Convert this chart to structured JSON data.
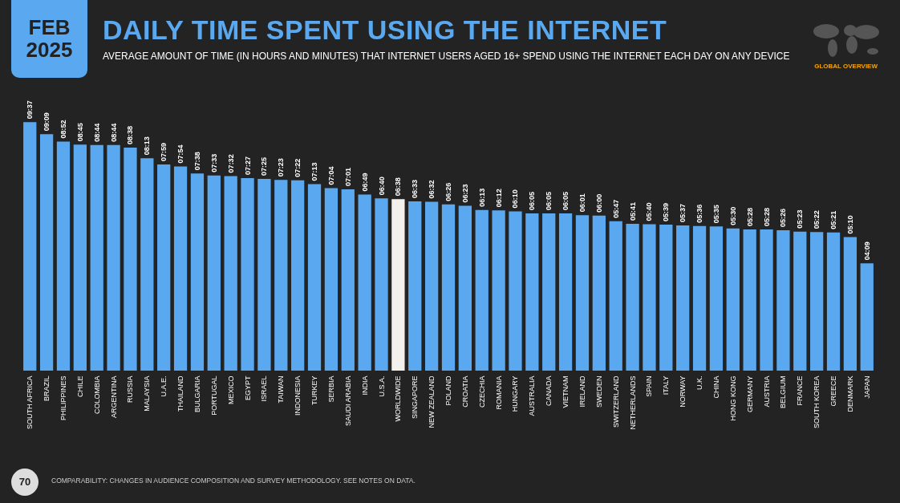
{
  "chart_data": {
    "type": "bar",
    "title": "DAILY TIME SPENT USING THE INTERNET",
    "subtitle": "AVERAGE AMOUNT OF TIME (IN HOURS AND MINUTES) THAT INTERNET USERS AGED 16+ SPEND USING THE INTERNET EACH DAY ON ANY DEVICE",
    "annotations": [
      "FEB 2025",
      "GLOBAL OVERVIEW",
      "70",
      "COMPARABILITY: CHANGES IN AUDIENCE COMPOSITION AND SURVEY METHODOLOGY. SEE NOTES ON DATA."
    ],
    "categories": [
      "SOUTH AFRICA",
      "BRAZIL",
      "PHILIPPINES",
      "CHILE",
      "COLOMBIA",
      "ARGENTINA",
      "RUSSIA",
      "MALAYSIA",
      "U.A.E.",
      "THAILAND",
      "BULGARIA",
      "PORTUGAL",
      "MEXICO",
      "EGYPT",
      "ISRAEL",
      "TAIWAN",
      "INDONESIA",
      "TURKEY",
      "SERBIA",
      "SAUDI ARABIA",
      "INDIA",
      "U.S.A.",
      "WORLDWIDE",
      "SINGAPORE",
      "NEW ZEALAND",
      "POLAND",
      "CROATIA",
      "CZECHIA",
      "ROMANIA",
      "HUNGARY",
      "AUSTRALIA",
      "CANADA",
      "VIETNAM",
      "IRELAND",
      "SWEDEN",
      "SWITZERLAND",
      "NETHERLANDS",
      "SPAIN",
      "ITALY",
      "NORWAY",
      "U.K.",
      "CHINA",
      "HONG KONG",
      "GERMANY",
      "AUSTRIA",
      "BELGIUM",
      "FRANCE",
      "SOUTH KOREA",
      "GREECE",
      "DENMARK",
      "JAPAN"
    ],
    "values": [
      9.617,
      9.15,
      8.867,
      8.75,
      8.733,
      8.733,
      8.633,
      8.217,
      7.983,
      7.9,
      7.633,
      7.55,
      7.533,
      7.45,
      7.417,
      7.383,
      7.367,
      7.217,
      7.067,
      7.017,
      6.817,
      6.667,
      6.633,
      6.55,
      6.533,
      6.433,
      6.383,
      6.217,
      6.2,
      6.167,
      6.083,
      6.083,
      6.083,
      6.017,
      6,
      5.783,
      5.683,
      5.667,
      5.65,
      5.617,
      5.6,
      5.583,
      5.5,
      5.467,
      5.467,
      5.433,
      5.383,
      5.367,
      5.35,
      5.167,
      4.15
    ],
    "value_labels": [
      "09:37",
      "09:09",
      "08:52",
      "08:45",
      "08:44",
      "08:44",
      "08:38",
      "08:13",
      "07:59",
      "07:54",
      "07:38",
      "07:33",
      "07:32",
      "07:27",
      "07:25",
      "07:23",
      "07:22",
      "07:13",
      "07:04",
      "07:01",
      "06:49",
      "06:40",
      "06:38",
      "06:33",
      "06:32",
      "06:26",
      "06:23",
      "06:13",
      "06:12",
      "06:10",
      "06:05",
      "06:05",
      "06:05",
      "06:01",
      "06:00",
      "05:47",
      "05:41",
      "05:40",
      "05:39",
      "05:37",
      "05:36",
      "05:35",
      "05:30",
      "05:28",
      "05:28",
      "05:26",
      "05:23",
      "05:22",
      "05:21",
      "05:10",
      "04:09"
    ],
    "colors": [
      "#5aa9f0",
      "#5aa9f0",
      "#5aa9f0",
      "#5aa9f0",
      "#5aa9f0",
      "#5aa9f0",
      "#5aa9f0",
      "#5aa9f0",
      "#5aa9f0",
      "#5aa9f0",
      "#5aa9f0",
      "#5aa9f0",
      "#5aa9f0",
      "#5aa9f0",
      "#5aa9f0",
      "#5aa9f0",
      "#5aa9f0",
      "#5aa9f0",
      "#5aa9f0",
      "#5aa9f0",
      "#5aa9f0",
      "#5aa9f0",
      "#f4f1ec",
      "#5aa9f0",
      "#5aa9f0",
      "#5aa9f0",
      "#5aa9f0",
      "#5aa9f0",
      "#5aa9f0",
      "#5aa9f0",
      "#5aa9f0",
      "#5aa9f0",
      "#5aa9f0",
      "#5aa9f0",
      "#5aa9f0",
      "#5aa9f0",
      "#5aa9f0",
      "#5aa9f0",
      "#5aa9f0",
      "#5aa9f0",
      "#5aa9f0",
      "#5aa9f0",
      "#5aa9f0",
      "#5aa9f0",
      "#5aa9f0",
      "#5aa9f0",
      "#5aa9f0",
      "#5aa9f0",
      "#5aa9f0",
      "#5aa9f0",
      "#5aa9f0"
    ]
  }
}
